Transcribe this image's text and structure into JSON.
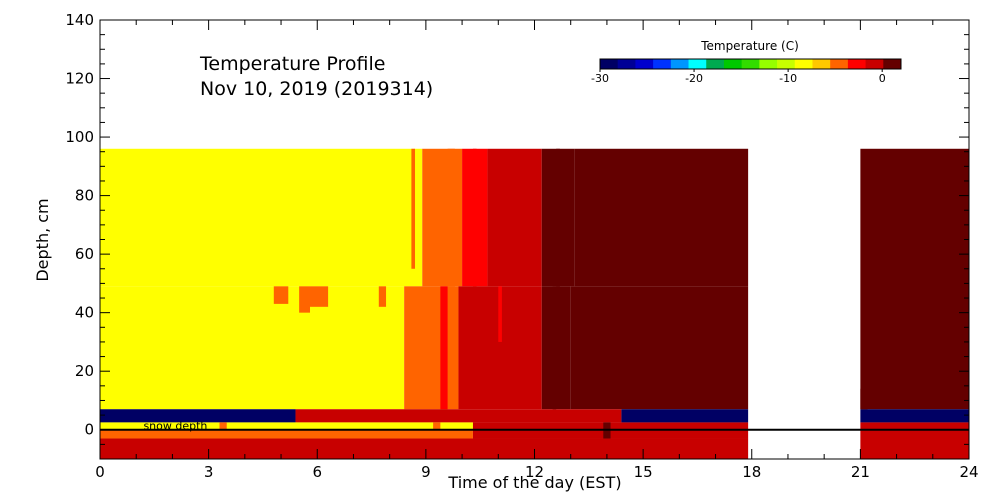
{
  "chart_data": {
    "type": "heatmap",
    "title": "Temperature Profile",
    "subtitle": "Nov 10, 2019 (2019314)",
    "xlabel": "Time of the day (EST)",
    "ylabel": "Depth, cm",
    "xlim": [
      0,
      24
    ],
    "ylim": [
      -10,
      140
    ],
    "x_ticks": [
      0,
      3,
      6,
      9,
      12,
      15,
      18,
      21,
      24
    ],
    "y_ticks": [
      0,
      20,
      40,
      60,
      80,
      100,
      120,
      140
    ],
    "grid": false,
    "colorbar": {
      "title": "Temperature (C)",
      "placement": "top-right",
      "ticks": [
        "-30",
        "-20",
        "-10",
        "0"
      ],
      "range": [
        -30,
        2
      ],
      "colors": [
        "#000064",
        "#000096",
        "#0000cd",
        "#0032ff",
        "#0096ff",
        "#00ffff",
        "#00aa50",
        "#00c800",
        "#32dc00",
        "#96ff00",
        "#c8ff00",
        "#ffff00",
        "#ffc800",
        "#ff6400",
        "#ff0000",
        "#c80000",
        "#640000"
      ]
    },
    "annotations": [
      {
        "text": "snow depth",
        "x": 1.2,
        "y": 1.5
      }
    ],
    "zero_line": 0,
    "blocks": [
      {
        "x0": 0,
        "x1": 8.9,
        "y0": 49,
        "y1": 96,
        "value": -8
      },
      {
        "x0": 8.9,
        "x1": 10.0,
        "y0": 49,
        "y1": 96,
        "value": -4
      },
      {
        "x0": 10.0,
        "x1": 10.7,
        "y0": 49,
        "y1": 96,
        "value": -2
      },
      {
        "x0": 10.7,
        "x1": 12.2,
        "y0": 49,
        "y1": 96,
        "value": -0.5
      },
      {
        "x0": 12.2,
        "x1": 13.1,
        "y0": 49,
        "y1": 96,
        "value": 0.3
      },
      {
        "x0": 13.1,
        "x1": 17.9,
        "y0": 49,
        "y1": 96,
        "value": 1.5
      },
      {
        "x0": 0,
        "x1": 8.4,
        "y0": 7,
        "y1": 49,
        "value": -8
      },
      {
        "x0": 8.4,
        "x1": 9.9,
        "y0": 7,
        "y1": 49,
        "value": -4
      },
      {
        "x0": 9.9,
        "x1": 12.2,
        "y0": 7,
        "y1": 49,
        "value": -0.5
      },
      {
        "x0": 12.2,
        "x1": 13.0,
        "y0": 7,
        "y1": 49,
        "value": 0.3
      },
      {
        "x0": 13.0,
        "x1": 17.9,
        "y0": 7,
        "y1": 49,
        "value": 1.5
      },
      {
        "x0": 21.0,
        "x1": 24.0,
        "y0": 7,
        "y1": 96,
        "value": 1.5
      },
      {
        "x0": 0,
        "x1": 5.4,
        "y0": 2.5,
        "y1": 7,
        "value": -29
      },
      {
        "x0": 5.4,
        "x1": 14.4,
        "y0": 2.5,
        "y1": 7,
        "value": -0.5
      },
      {
        "x0": 14.4,
        "x1": 17.9,
        "y0": 2.5,
        "y1": 7,
        "value": -29
      },
      {
        "x0": 21.0,
        "x1": 24.0,
        "y0": 2.5,
        "y1": 7,
        "value": -29
      },
      {
        "x0": 0,
        "x1": 10.3,
        "y0": 0,
        "y1": 2.5,
        "value": -8
      },
      {
        "x0": 0,
        "x1": 10.3,
        "y0": -3,
        "y1": 0,
        "value": -4
      },
      {
        "x0": 10.3,
        "x1": 17.9,
        "y0": -3,
        "y1": 2.5,
        "value": -0.5
      },
      {
        "x0": 0,
        "x1": 17.9,
        "y0": -10,
        "y1": -3,
        "value": -0.5
      },
      {
        "x0": 21.0,
        "x1": 24.0,
        "y0": -10,
        "y1": 2.5,
        "value": -0.5
      }
    ],
    "stripes": [
      {
        "x": 4.8,
        "x1": 5.2,
        "y0": 43,
        "y1": 49,
        "value": -5
      },
      {
        "x": 5.5,
        "x1": 5.8,
        "y0": 40,
        "y1": 49,
        "value": -5
      },
      {
        "x": 5.8,
        "x1": 6.3,
        "y0": 42,
        "y1": 49,
        "value": -4
      },
      {
        "x": 7.7,
        "x1": 7.9,
        "y0": 42,
        "y1": 49,
        "value": -4
      },
      {
        "x": 8.6,
        "x1": 8.7,
        "y0": 55,
        "y1": 96,
        "value": -5
      },
      {
        "x": 9.6,
        "x1": 9.8,
        "y0": 49,
        "y1": 96,
        "value": -5
      },
      {
        "x": 10.3,
        "x1": 10.4,
        "y0": 49,
        "y1": 96,
        "value": -3
      },
      {
        "x": 11.0,
        "x1": 11.1,
        "y0": 30,
        "y1": 49,
        "value": -2
      },
      {
        "x": 12.6,
        "x1": 12.7,
        "y0": 49,
        "y1": 96,
        "value": 0.8
      },
      {
        "x": 9.4,
        "x1": 9.6,
        "y0": 7,
        "y1": 49,
        "value": -3
      },
      {
        "x": 12.5,
        "x1": 12.6,
        "y0": 7,
        "y1": 49,
        "value": 0.8
      },
      {
        "x": 21.0,
        "x1": 21.2,
        "y0": 7,
        "y1": 14,
        "value": 0.3
      },
      {
        "x": 13.9,
        "x1": 14.1,
        "y0": -3,
        "y1": 2.5,
        "value": 1.0
      },
      {
        "x": 9.2,
        "x1": 9.4,
        "y0": -3,
        "y1": 2.5,
        "value": -4.5
      },
      {
        "x": 3.3,
        "x1": 3.5,
        "y0": 0,
        "y1": 2.5,
        "value": -5
      }
    ]
  }
}
